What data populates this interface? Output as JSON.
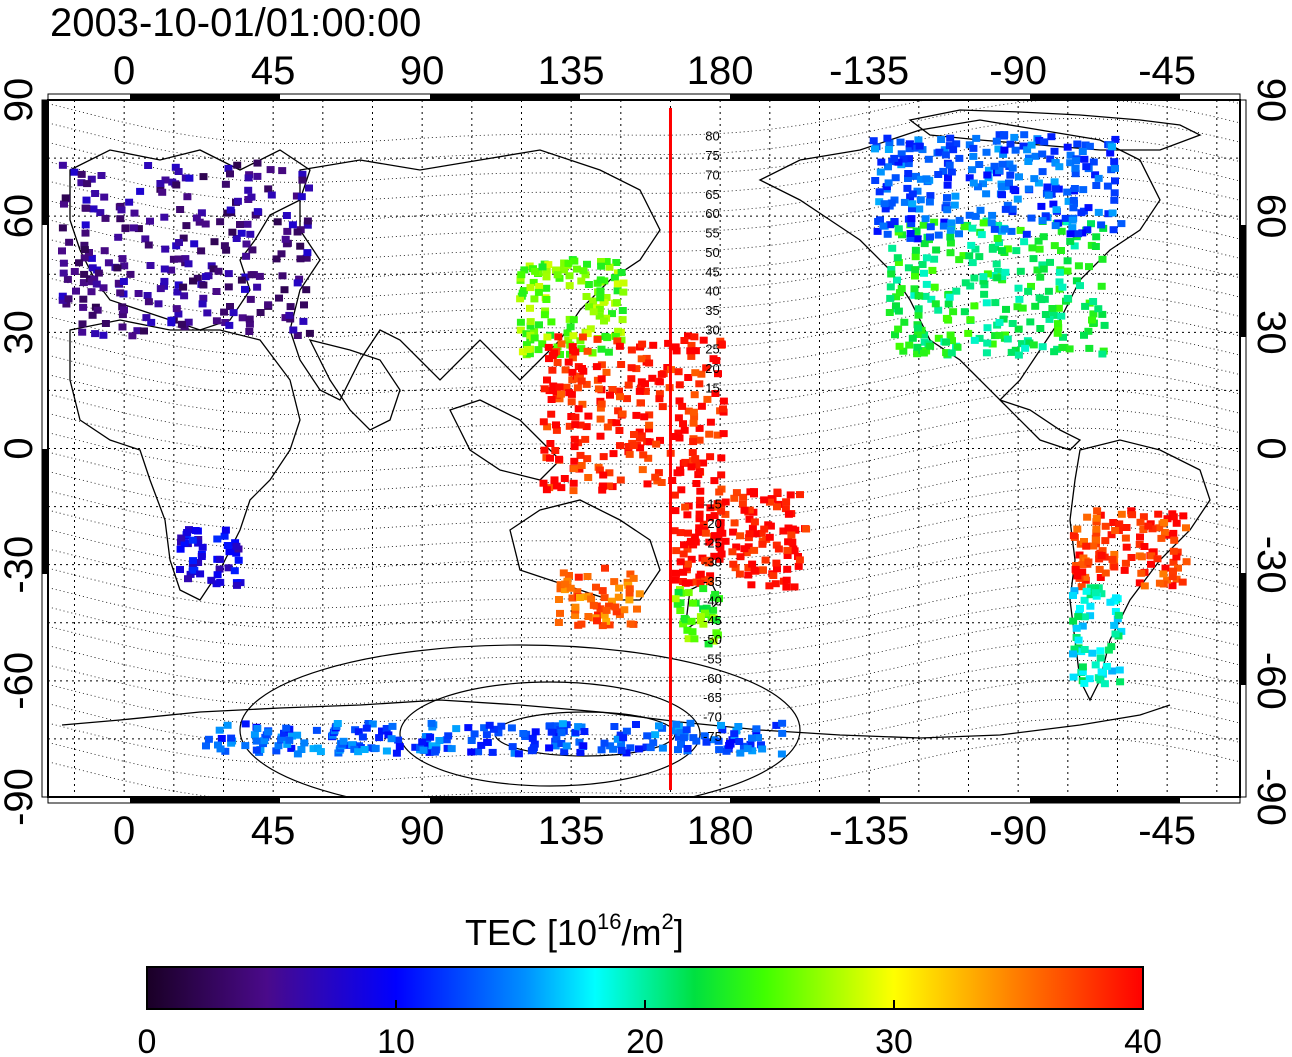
{
  "title": "2003-10-01/01:00:00",
  "top_lon_labels": [
    "0",
    "45",
    "90",
    "135",
    "180",
    "-135",
    "-90",
    "-45"
  ],
  "bottom_lon_labels": [
    "0",
    "45",
    "90",
    "135",
    "180",
    "-135",
    "-90",
    "-45"
  ],
  "lat_labels": [
    "90",
    "60",
    "30",
    "0",
    "-30",
    "-60",
    "-90"
  ],
  "contour_labels": [
    "80",
    "75",
    "70",
    "65",
    "60",
    "55",
    "50",
    "45",
    "40",
    "35",
    "30",
    "25",
    "20",
    "15",
    "-15",
    "-20",
    "-25",
    "-30",
    "-35",
    "-40",
    "-45",
    "-50",
    "-55",
    "-60",
    "-65",
    "-70",
    "-75"
  ],
  "colorbar": {
    "label_main": "TEC  [10",
    "label_sup1": "16",
    "label_mid": "/m",
    "label_sup2": "2",
    "label_end": "]",
    "ticks": [
      "0",
      "10",
      "20",
      "30",
      "40"
    ],
    "range": [
      0,
      40
    ]
  },
  "colors": {
    "terminator": "#ff0000",
    "tec_low": "#1a0026",
    "tec_high": "#ff0000"
  },
  "map_data": {
    "lon_range_left_edge": -23,
    "terminator_lon": 165,
    "regions": [
      {
        "name": "europe",
        "lon": [
          -20,
          55
        ],
        "lat": [
          30,
          75
        ],
        "tec": 5
      },
      {
        "name": "east-asia",
        "lon": [
          118,
          150
        ],
        "lat": [
          25,
          50
        ],
        "tec": 26
      },
      {
        "name": "north-america",
        "lon": [
          -130,
          -65
        ],
        "lat": [
          25,
          60
        ],
        "tec": 22
      },
      {
        "name": "canada",
        "lon": [
          -135,
          -60
        ],
        "lat": [
          55,
          82
        ],
        "tec": 13
      },
      {
        "name": "west-pacific",
        "lon": [
          125,
          180
        ],
        "lat": [
          -10,
          30
        ],
        "tec": 39
      },
      {
        "name": "south-pacific",
        "lon": [
          165,
          205
        ],
        "lat": [
          -35,
          -10
        ],
        "tec": 40
      },
      {
        "name": "australia",
        "lon": [
          130,
          155
        ],
        "lat": [
          -45,
          -30
        ],
        "tec": 36
      },
      {
        "name": "new-zealand",
        "lon": [
          165,
          180
        ],
        "lat": [
          -50,
          -35
        ],
        "tec": 25
      },
      {
        "name": "south-america",
        "lon": [
          -75,
          -40
        ],
        "lat": [
          -35,
          -15
        ],
        "tec": 38
      },
      {
        "name": "patagonia",
        "lon": [
          -75,
          -60
        ],
        "lat": [
          -60,
          -35
        ],
        "tec": 19
      },
      {
        "name": "south-africa",
        "lon": [
          15,
          35
        ],
        "lat": [
          -35,
          -20
        ],
        "tec": 9
      },
      {
        "name": "antarctic-coast",
        "lon": [
          20,
          200
        ],
        "lat": [
          -78,
          -70
        ],
        "tec": 13
      }
    ]
  }
}
